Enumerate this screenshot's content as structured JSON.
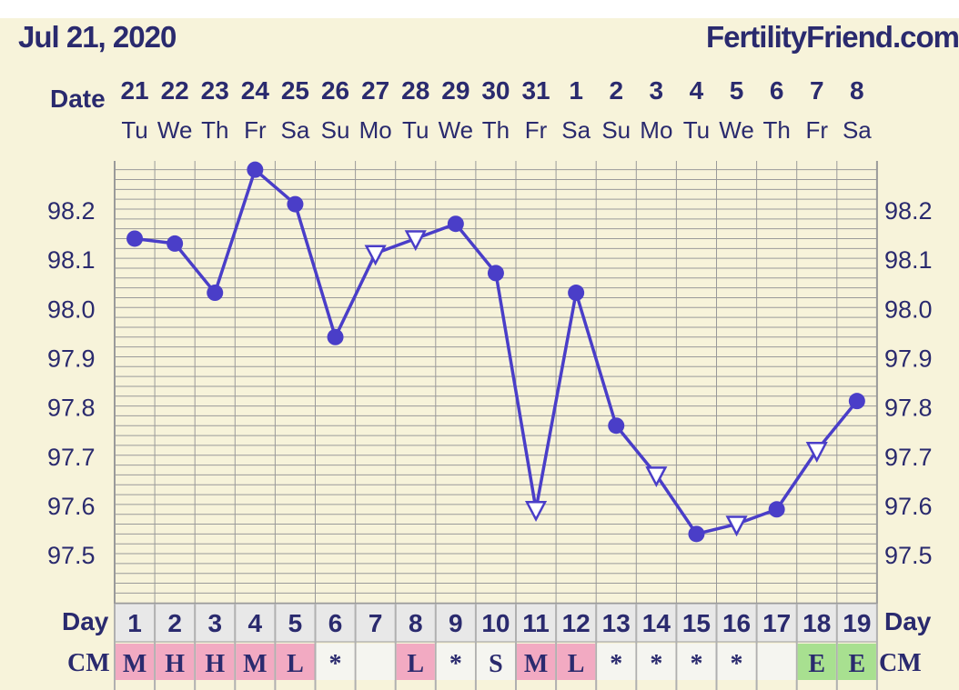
{
  "header": {
    "date": "Jul 21, 2020",
    "site": "FertilityFriend.com"
  },
  "chart_data": {
    "type": "line",
    "row_labels": {
      "date": "Date",
      "day": "Day",
      "cm": "CM"
    },
    "dates": [
      "21",
      "22",
      "23",
      "24",
      "25",
      "26",
      "27",
      "28",
      "29",
      "30",
      "31",
      "1",
      "2",
      "3",
      "4",
      "5",
      "6",
      "7",
      "8"
    ],
    "weekdays": [
      "Tu",
      "We",
      "Th",
      "Fr",
      "Sa",
      "Su",
      "Mo",
      "Tu",
      "We",
      "Th",
      "Fr",
      "Sa",
      "Su",
      "Mo",
      "Tu",
      "We",
      "Th",
      "Fr",
      "Sa"
    ],
    "cycle_days": [
      "1",
      "2",
      "3",
      "4",
      "5",
      "6",
      "7",
      "8",
      "9",
      "10",
      "11",
      "12",
      "13",
      "14",
      "15",
      "16",
      "17",
      "18",
      "19"
    ],
    "y_ticks": [
      "98.2",
      "98.1",
      "98.0",
      "97.9",
      "97.8",
      "97.7",
      "97.6",
      "97.5"
    ],
    "temperatures": [
      98.14,
      98.13,
      98.03,
      98.28,
      98.21,
      97.94,
      98.11,
      98.14,
      98.17,
      98.07,
      97.59,
      98.03,
      97.76,
      97.66,
      97.54,
      97.56,
      97.59,
      97.71,
      97.81
    ],
    "markers": [
      "circle",
      "circle",
      "circle",
      "circle",
      "circle",
      "circle",
      "triangle",
      "triangle",
      "circle",
      "circle",
      "triangle",
      "circle",
      "circle",
      "triangle",
      "circle",
      "triangle",
      "circle",
      "triangle",
      "circle"
    ],
    "cm": [
      "M",
      "H",
      "H",
      "M",
      "L",
      "*",
      "",
      "L",
      "*",
      "S",
      "M",
      "L",
      "*",
      "*",
      "*",
      "*",
      "",
      "E",
      "E"
    ],
    "ylim": [
      97.5,
      98.2
    ],
    "colors": {
      "line": "#4a3ec8",
      "grid": "#9a9a9a",
      "bg": "#f7f3da",
      "text": "#2a2a6e",
      "pink": "#f2aac2",
      "green": "#a8e090",
      "cell": "#f5f5f0",
      "dayrow": "#e8e8e8"
    }
  }
}
